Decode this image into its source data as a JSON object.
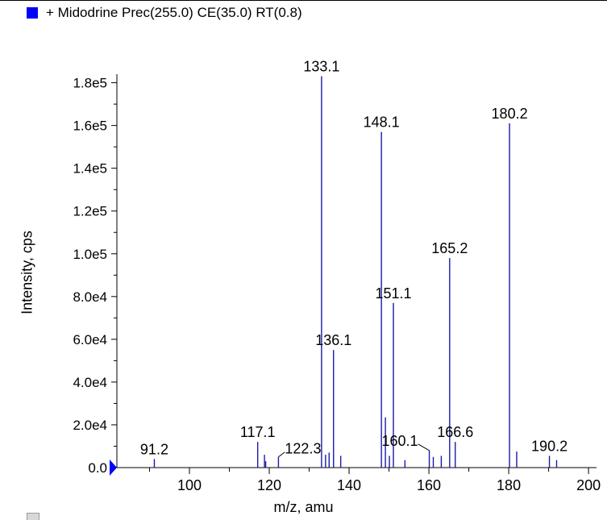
{
  "legend": {
    "label": "+ Midodrine Prec(255.0) CE(35.0) RT(0.8)",
    "color": "#0000ff"
  },
  "chart_data": {
    "type": "bar",
    "xlabel": "m/z, amu",
    "ylabel": "Intensity, cps",
    "xlim": [
      80,
      202
    ],
    "ylim": [
      0,
      184000
    ],
    "xticks": [
      100,
      120,
      140,
      160,
      180,
      200
    ],
    "yticks": [
      0,
      20000,
      40000,
      60000,
      80000,
      100000,
      120000,
      140000,
      160000,
      180000
    ],
    "ytick_labels": [
      "0.0",
      "2.0e4",
      "4.0e4",
      "6.0e4",
      "8.0e4",
      "1.0e5",
      "1.2e5",
      "1.4e5",
      "1.6e5",
      "1.8e5"
    ],
    "bar_color": "#1a1aa8",
    "series": [
      {
        "x": [
          91.2,
          117.1,
          118.8,
          119.1,
          122.3,
          133.1,
          134.1,
          135.0,
          136.1,
          137.9,
          148.1,
          149.1,
          150.1,
          151.1,
          154.0,
          160.1,
          161.1,
          163.1,
          165.2,
          166.6,
          180.2,
          182.0,
          190.2,
          192.0
        ],
        "y": [
          4000,
          12000,
          6000,
          3000,
          5000,
          183000,
          6000,
          7000,
          55000,
          5500,
          157000,
          23500,
          5500,
          77000,
          3500,
          8000,
          5000,
          5500,
          98000,
          12000,
          161000,
          7500,
          5500,
          3500
        ]
      }
    ],
    "annotations": [
      {
        "text": "91.2",
        "x": 91.2
      },
      {
        "text": "117.1",
        "x": 117.1
      },
      {
        "text": "122.3",
        "x": 122.3,
        "leader": true
      },
      {
        "text": "133.1",
        "x": 133.1
      },
      {
        "text": "136.1",
        "x": 136.1
      },
      {
        "text": "148.1",
        "x": 148.1
      },
      {
        "text": "151.1",
        "x": 151.1
      },
      {
        "text": "160.1",
        "x": 160.1,
        "leader": true
      },
      {
        "text": "165.2",
        "x": 165.2
      },
      {
        "text": "166.6",
        "x": 166.6
      },
      {
        "text": "180.2",
        "x": 180.2
      },
      {
        "text": "190.2",
        "x": 190.2
      }
    ]
  }
}
